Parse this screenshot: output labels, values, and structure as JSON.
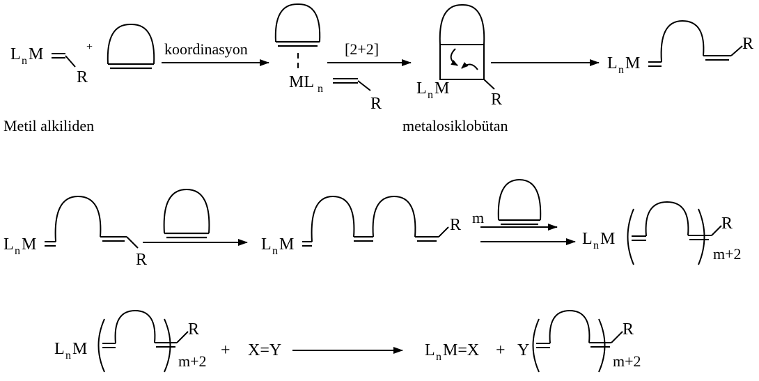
{
  "metal": "M",
  "ligand_base": "L",
  "ligand_sub": "n",
  "ml_base": "ML",
  "r_group": "R",
  "plus": "+",
  "arrow_coordination": "koordinasyon",
  "arrow_cycloaddition": "[2+2]",
  "caption_alkylidene": "Metil alkiliden",
  "caption_metallacycle": "metalosiklobütan",
  "m_label": "m",
  "m_plus_2": "m+2",
  "reagent_xy": "X=Y",
  "product_mx": "M=X",
  "y_label": "Y"
}
